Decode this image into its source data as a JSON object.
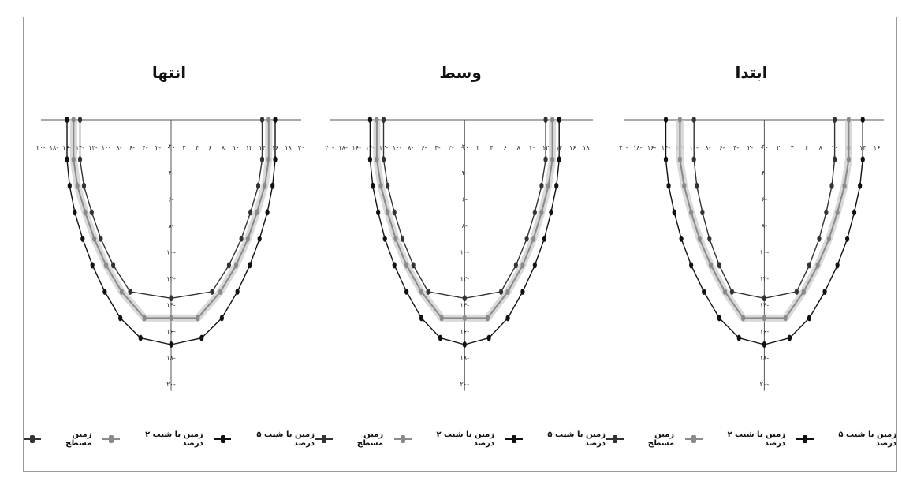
{
  "chart_data": [
    {
      "type": "line",
      "title": "انتها",
      "x_ticks": [
        "۲۰-",
        "۱۸-",
        "۱۶-",
        "۱۴-",
        "۱۲-",
        "۱۰-",
        "۸-",
        "۶-",
        "۴-",
        "۲-",
        "۰.۰",
        "۲",
        "۴",
        "۶",
        "۸",
        "۱۰",
        "۱۲",
        "۱۴",
        "۱۶",
        "۱۸",
        "۲۰"
      ],
      "y_ticks": [
        "۰.۰",
        "۲-",
        "۴-",
        "۶-",
        "۸-",
        "۱۰-",
        "۱۲-",
        "۱۴-",
        "۱۶-",
        "۱۸-",
        "۲۰-"
      ],
      "xlim": [
        -20,
        20
      ],
      "ylim": [
        -21,
        0
      ],
      "series": [
        {
          "name": "زمین با شیب ۵ درصد",
          "color": "#111111",
          "x": [
            -16,
            -16,
            -15.6,
            -14.8,
            -13.6,
            -12.1,
            -10.2,
            -7.8,
            -4.7,
            0,
            4.7,
            7.8,
            10.2,
            12.1,
            13.6,
            14.8,
            15.6,
            16,
            16
          ],
          "y": [
            0,
            -3,
            -5,
            -7,
            -9,
            -11,
            -13,
            -15,
            -16.5,
            -17,
            -16.5,
            -15,
            -13,
            -11,
            -9,
            -7,
            -5,
            -3,
            0
          ]
        },
        {
          "name": "زمین با شیب ۲ درصد",
          "color": "#8a8a8a",
          "x": [
            -15,
            -15,
            -14.4,
            -13.2,
            -11.8,
            -10,
            -7.6,
            -4.1,
            0,
            4.1,
            7.6,
            10,
            11.8,
            13.2,
            14.4,
            15,
            15
          ],
          "y": [
            0,
            -3,
            -5,
            -7,
            -9,
            -11,
            -13,
            -15,
            -15,
            -15,
            -13,
            -11,
            -9,
            -7,
            -5,
            -3,
            0
          ]
        },
        {
          "name": "زمین مسطح",
          "color": "#333333",
          "x": [
            -14,
            -14,
            -13.4,
            -12.2,
            -10.8,
            -8.9,
            -6.3,
            0,
            6.3,
            8.9,
            10.8,
            12.2,
            13.4,
            14,
            14
          ],
          "y": [
            0,
            -3,
            -5,
            -7,
            -9,
            -11,
            -13,
            -13.5,
            -13,
            -11,
            -9,
            -7,
            -5,
            -3,
            0
          ]
        }
      ],
      "legend": [
        "زمین با شیب ۵ درصد",
        "زمین با شیب ۲ درصد",
        "زمین مسطح"
      ]
    },
    {
      "type": "line",
      "title": "وسط",
      "x_ticks": [
        "۲۰-",
        "۱۸-",
        "۱۶-",
        "۱۴-",
        "۱۲-",
        "۱۰-",
        "۸-",
        "۶-",
        "۴-",
        "۲-",
        "۰.۰",
        "۲",
        "۴",
        "۶",
        "۸",
        "۱۰",
        "۱۲",
        "۱۴",
        "۱۶",
        "۱۸"
      ],
      "y_ticks": [
        "۰.۰",
        "۲-",
        "۴-",
        "۶-",
        "۸-",
        "۱۰-",
        "۱۲-",
        "۱۴-",
        "۱۶-",
        "۱۸-",
        "۲۰-"
      ],
      "xlim": [
        -20,
        19
      ],
      "ylim": [
        -21,
        0
      ],
      "series": [
        {
          "name": "زمین با شیب ۵ درصد",
          "color": "#111111",
          "x": [
            -14,
            -14,
            -13.6,
            -12.8,
            -11.8,
            -10.4,
            -8.6,
            -6.4,
            -3.6,
            0,
            3.6,
            6.4,
            8.6,
            10.4,
            11.8,
            12.8,
            13.6,
            14,
            14
          ],
          "y": [
            0,
            -3,
            -5,
            -7,
            -9,
            -11,
            -13,
            -15,
            -16.5,
            -17,
            -16.5,
            -15,
            -13,
            -11,
            -9,
            -7,
            -5,
            -3,
            0
          ]
        },
        {
          "name": "زمین با شیب ۲ درصد",
          "color": "#8a8a8a",
          "x": [
            -13,
            -13,
            -12.4,
            -11.4,
            -10.2,
            -8.6,
            -6.4,
            -3.4,
            0,
            3.4,
            6.4,
            8.6,
            10.2,
            11.4,
            12.4,
            13,
            13
          ],
          "y": [
            0,
            -3,
            -5,
            -7,
            -9,
            -11,
            -13,
            -15,
            -15,
            -15,
            -13,
            -11,
            -9,
            -7,
            -5,
            -3,
            0
          ]
        },
        {
          "name": "زمین مسطح",
          "color": "#333333",
          "x": [
            -12,
            -12,
            -11.4,
            -10.4,
            -9.2,
            -7.6,
            -5.4,
            0,
            5.4,
            7.6,
            9.2,
            10.4,
            11.4,
            12,
            12
          ],
          "y": [
            0,
            -3,
            -5,
            -7,
            -9,
            -11,
            -13,
            -13.5,
            -13,
            -11,
            -9,
            -7,
            -5,
            -3,
            0
          ]
        }
      ],
      "legend": [
        "زمین با شیب ۵ درصد",
        "زمین با شیب ۲ درصد",
        "زمین مسطح"
      ]
    },
    {
      "type": "line",
      "title": "ابتدا",
      "x_ticks": [
        "۲۰-",
        "۱۸-",
        "۱۶-",
        "۱۴-",
        "۱۲-",
        "۱۰-",
        "۸-",
        "۶-",
        "۴-",
        "۲-",
        "۰.۰",
        "۲",
        "۴",
        "۶",
        "۸",
        "۱۰",
        "۱۲",
        "۱۴",
        "۱۶"
      ],
      "y_ticks": [
        "۰.۰",
        "۲-",
        "۴-",
        "۶-",
        "۸-",
        "۱۰-",
        "۱۲-",
        "۱۴-",
        "۱۶-",
        "۱۸-",
        "۲۰-"
      ],
      "xlim": [
        -20,
        17
      ],
      "ylim": [
        -21,
        0
      ],
      "series": [
        {
          "name": "زمین با شیب ۵ درصد",
          "color": "#111111",
          "x": [
            -14,
            -14,
            -13.6,
            -12.8,
            -11.8,
            -10.4,
            -8.6,
            -6.4,
            -3.6,
            0,
            3.6,
            6.4,
            8.6,
            10.4,
            11.8,
            12.8,
            13.6,
            14,
            14
          ],
          "y": [
            0,
            -3,
            -5,
            -7,
            -9,
            -11,
            -13,
            -15,
            -16.5,
            -17,
            -16.5,
            -15,
            -13,
            -11,
            -9,
            -7,
            -5,
            -3,
            0
          ]
        },
        {
          "name": "زمین با شیب ۲ درصد",
          "color": "#8a8a8a",
          "x": [
            -12,
            -12,
            -11.4,
            -10.4,
            -9.2,
            -7.6,
            -5.6,
            -3,
            0,
            3,
            5.6,
            7.6,
            9.2,
            10.4,
            11.4,
            12,
            12
          ],
          "y": [
            0,
            -3,
            -5,
            -7,
            -9,
            -11,
            -13,
            -15,
            -15,
            -15,
            -13,
            -11,
            -9,
            -7,
            -5,
            -3,
            0
          ]
        },
        {
          "name": "زمین مسطح",
          "color": "#333333",
          "x": [
            -10,
            -10,
            -9.6,
            -8.8,
            -7.8,
            -6.4,
            -4.6,
            0,
            4.6,
            6.4,
            7.8,
            8.8,
            9.6,
            10,
            10
          ],
          "y": [
            0,
            -3,
            -5,
            -7,
            -9,
            -11,
            -13,
            -13.5,
            -13,
            -11,
            -9,
            -7,
            -5,
            -3,
            0
          ]
        }
      ],
      "legend": [
        "زمین با شیب ۵ درصد",
        "زمین با شیب ۲ درصد",
        "زمین مسطح"
      ]
    }
  ]
}
